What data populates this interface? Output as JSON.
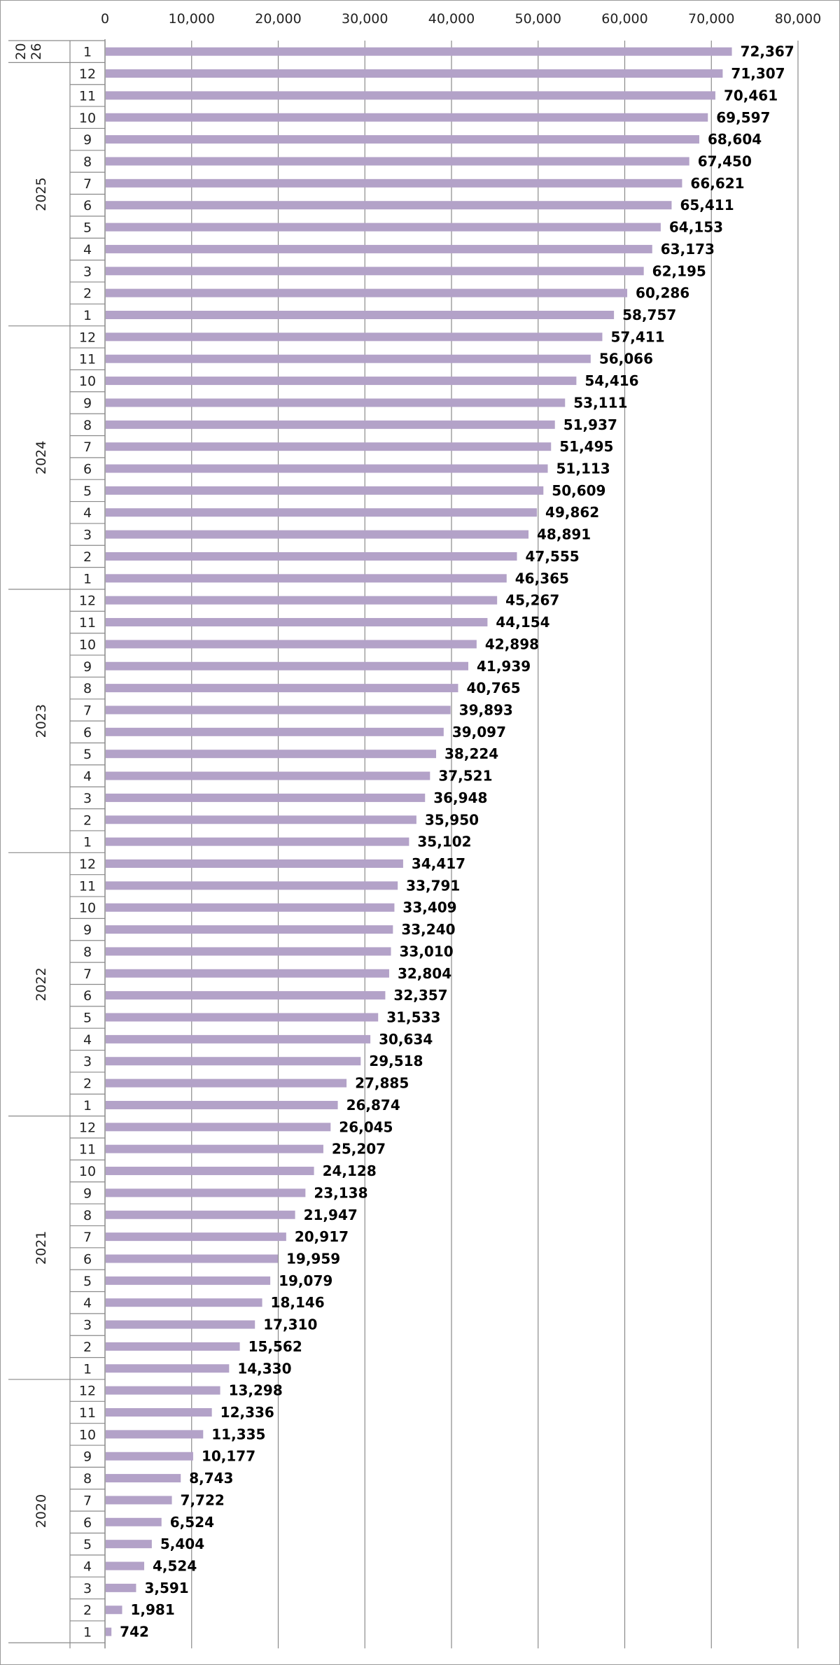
{
  "colors": {
    "bar": "#b3a2c8",
    "grid": "#8a8a8a",
    "text": "#222222"
  },
  "chart_data": {
    "type": "bar",
    "orientation": "horizontal",
    "title": "",
    "xlabel": "",
    "ylabel": "",
    "xlim": [
      0,
      80000
    ],
    "x_ticks": [
      0,
      10000,
      20000,
      30000,
      40000,
      50000,
      60000,
      70000,
      80000
    ],
    "x_tick_labels": [
      "0",
      "10,000",
      "20,000",
      "30,000",
      "40,000",
      "50,000",
      "60,000",
      "70,000",
      "80,000"
    ],
    "grid": true,
    "legend": "none",
    "year_groups": [
      {
        "label": "20\n26",
        "lines": [
          "20",
          "26"
        ],
        "months": 1
      },
      {
        "label": "2025",
        "lines": [
          "2025"
        ],
        "months": 12
      },
      {
        "label": "2024",
        "lines": [
          "2024"
        ],
        "months": 12
      },
      {
        "label": "2023",
        "lines": [
          "2023"
        ],
        "months": 12
      },
      {
        "label": "2022",
        "lines": [
          "2022"
        ],
        "months": 12
      },
      {
        "label": "2021",
        "lines": [
          "2021"
        ],
        "months": 12
      },
      {
        "label": "2020",
        "lines": [
          "2020"
        ],
        "months": 12
      }
    ],
    "categories": [
      "1",
      "12",
      "11",
      "10",
      "9",
      "8",
      "7",
      "6",
      "5",
      "4",
      "3",
      "2",
      "1",
      "12",
      "11",
      "10",
      "9",
      "8",
      "7",
      "6",
      "5",
      "4",
      "3",
      "2",
      "1",
      "12",
      "11",
      "10",
      "9",
      "8",
      "7",
      "6",
      "5",
      "4",
      "3",
      "2",
      "1",
      "12",
      "11",
      "10",
      "9",
      "8",
      "7",
      "6",
      "5",
      "4",
      "3",
      "2",
      "1",
      "12",
      "11",
      "10",
      "9",
      "8",
      "7",
      "6",
      "5",
      "4",
      "3",
      "2",
      "1",
      "12",
      "11",
      "10",
      "9",
      "8",
      "7",
      "6",
      "5",
      "4",
      "3",
      "2",
      "1"
    ],
    "values": [
      72367,
      71307,
      70461,
      69597,
      68604,
      67450,
      66621,
      65411,
      64153,
      63173,
      62195,
      60286,
      58757,
      57411,
      56066,
      54416,
      53111,
      51937,
      51495,
      51113,
      50609,
      49862,
      48891,
      47555,
      46365,
      45267,
      44154,
      42898,
      41939,
      40765,
      39893,
      39097,
      38224,
      37521,
      36948,
      35950,
      35102,
      34417,
      33791,
      33409,
      33240,
      33010,
      32804,
      32357,
      31533,
      30634,
      29518,
      27885,
      26874,
      26045,
      25207,
      24128,
      23138,
      21947,
      20917,
      19959,
      19079,
      18146,
      17310,
      15562,
      14330,
      13298,
      12336,
      11335,
      10177,
      8743,
      7722,
      6524,
      5404,
      4524,
      3591,
      1981,
      742
    ],
    "value_labels": [
      "72,367",
      "71,307",
      "70,461",
      "69,597",
      "68,604",
      "67,450",
      "66,621",
      "65,411",
      "64,153",
      "63,173",
      "62,195",
      "60,286",
      "58,757",
      "57,411",
      "56,066",
      "54,416",
      "53,111",
      "51,937",
      "51,495",
      "51,113",
      "50,609",
      "49,862",
      "48,891",
      "47,555",
      "46,365",
      "45,267",
      "44,154",
      "42,898",
      "41,939",
      "40,765",
      "39,893",
      "39,097",
      "38,224",
      "37,521",
      "36,948",
      "35,950",
      "35,102",
      "34,417",
      "33,791",
      "33,409",
      "33,240",
      "33,010",
      "32,804",
      "32,357",
      "31,533",
      "30,634",
      "29,518",
      "27,885",
      "26,874",
      "26,045",
      "25,207",
      "24,128",
      "23,138",
      "21,947",
      "20,917",
      "19,959",
      "19,079",
      "18,146",
      "17,310",
      "15,562",
      "14,330",
      "13,298",
      "12,336",
      "11,335",
      "10,177",
      "8,743",
      "7,722",
      "6,524",
      "5,404",
      "4,524",
      "3,591",
      "1,981",
      "742"
    ]
  }
}
